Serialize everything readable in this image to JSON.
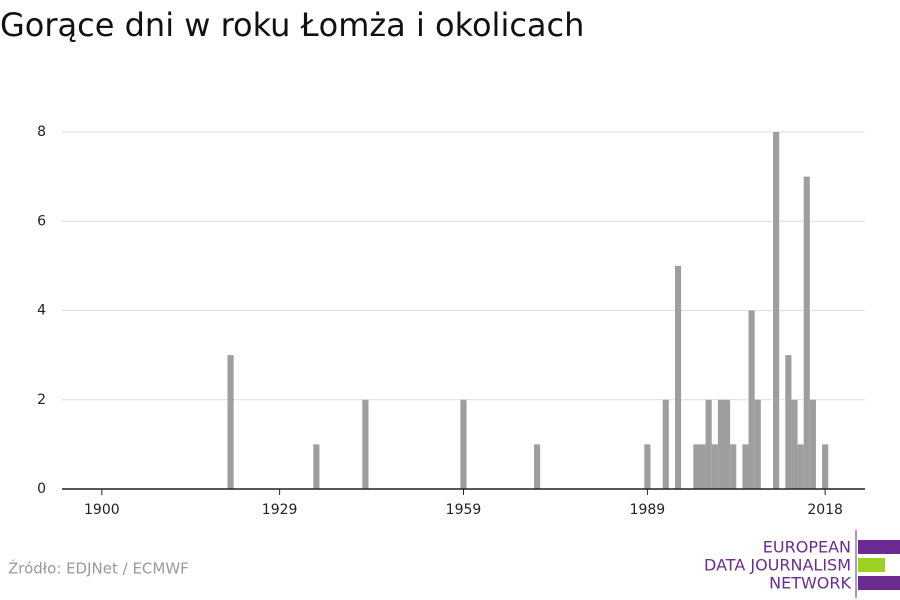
{
  "chart_data": {
    "type": "bar",
    "title": "Gorące dni w roku Łomża i okolicach",
    "x": [
      1921,
      1935,
      1943,
      1959,
      1971,
      1989,
      1992,
      1994,
      1997,
      1998,
      1999,
      2000,
      2001,
      2002,
      2003,
      2005,
      2006,
      2007,
      2010,
      2012,
      2013,
      2014,
      2015,
      2016,
      2018
    ],
    "values": [
      3,
      1,
      2,
      2,
      1,
      1,
      2,
      5,
      1,
      1,
      2,
      1,
      2,
      2,
      1,
      1,
      4,
      2,
      8,
      3,
      2,
      1,
      7,
      2,
      1
    ],
    "color": "#9e9e9e",
    "xlim": [
      1893.5,
      2024.5
    ],
    "xticks": [
      1900,
      1929,
      1959,
      1989,
      2018
    ],
    "ylim": [
      0,
      8
    ],
    "yticks": [
      0,
      2,
      4,
      6,
      8
    ],
    "grid": true,
    "source": "Źródło: EDJNet / ECMWF",
    "logo": [
      "EUROPEAN",
      "DATA JOURNALISM",
      "NETWORK"
    ]
  }
}
